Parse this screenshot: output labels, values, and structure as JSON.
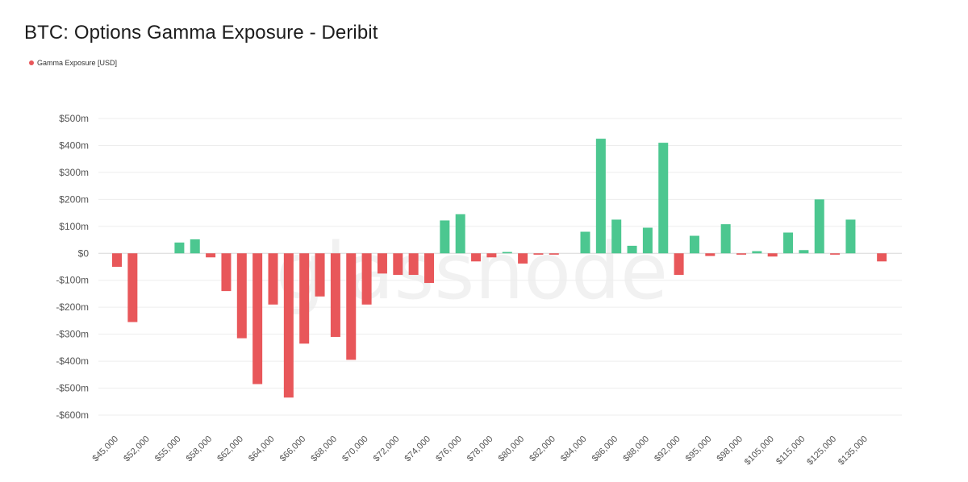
{
  "colors": {
    "positive": "#4CC790",
    "negative": "#E8575A",
    "legend_dot": "#E8575A"
  },
  "chart_data": {
    "type": "bar",
    "title": "BTC: Options Gamma Exposure - Deribit",
    "legend": [
      "Gamma Exposure [USD]"
    ],
    "legend_position": "top-left",
    "watermark": "glassnode",
    "grid": true,
    "ylim": [
      -600,
      500
    ],
    "yunit": "USD millions",
    "ytick_values": [
      500,
      400,
      300,
      200,
      100,
      0,
      -100,
      -200,
      -300,
      -400,
      -500,
      -600
    ],
    "ytick_labels": [
      "$500m",
      "$400m",
      "$300m",
      "$200m",
      "$100m",
      "$0",
      "-$100m",
      "-$200m",
      "-$300m",
      "-$400m",
      "-$500m",
      "-$600m"
    ],
    "x_tick_labels": [
      "$45,000",
      "$52,000",
      "$55,000",
      "$58,000",
      "$62,000",
      "$64,000",
      "$66,000",
      "$68,000",
      "$70,000",
      "$72,000",
      "$74,000",
      "$76,000",
      "$78,000",
      "$80,000",
      "$82,000",
      "$84,000",
      "$86,000",
      "$88,000",
      "$92,000",
      "$95,000",
      "$98,000",
      "$105,000",
      "$115,000",
      "$125,000",
      "$135,000"
    ],
    "series": [
      {
        "name": "Gamma Exposure [USD]",
        "values": [
          -50,
          -255,
          0,
          0,
          40,
          52,
          -15,
          -140,
          -315,
          -485,
          -190,
          -535,
          -335,
          -160,
          -310,
          -395,
          -190,
          -75,
          -80,
          -80,
          -110,
          122,
          145,
          -30,
          -15,
          5,
          -38,
          -5,
          -5,
          0,
          80,
          425,
          125,
          28,
          95,
          410,
          -80,
          65,
          -10,
          108,
          -5,
          8,
          -12,
          77,
          12,
          200,
          -5,
          125,
          0,
          -30
        ]
      }
    ]
  }
}
